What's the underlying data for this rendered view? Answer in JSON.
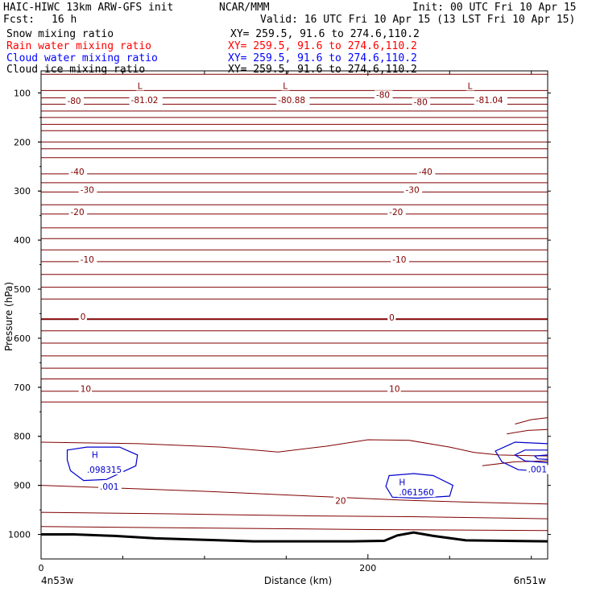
{
  "header": {
    "model": "HAIC-HIWC 13km ARW-GFS init",
    "org": "NCAR/MMM",
    "init": "Init: 00 UTC Fri 10 Apr 15",
    "fcst_label": "Fcst:",
    "fcst_value": "16 h",
    "valid": "Valid: 16 UTC Fri 10 Apr 15 (13 LST Fri 10 Apr 15)",
    "fields": [
      {
        "name": "Snow mixing ratio",
        "xy": "XY= 259.5, 91.6 to 274.6,110.2",
        "color": "#000000"
      },
      {
        "name": "Rain water mixing ratio",
        "xy": "XY= 259.5, 91.6 to 274.6,110.2",
        "color": "#ff0000"
      },
      {
        "name": "Cloud water mixing ratio",
        "xy": "XY= 259.5, 91.6 to 274.6,110.2",
        "color": "#0000ff"
      },
      {
        "name": "Cloud ice mixing ratio",
        "xy": "XY= 259.5, 91.6 to 274.6,110.2",
        "color": "#000000"
      }
    ]
  },
  "chart_data": {
    "type": "cross-section contour",
    "xlabel": "Distance (km)",
    "ylabel": "Pressure (hPa)",
    "x_ticks": [
      {
        "value": 0,
        "label": "0"
      },
      {
        "value": 200,
        "label": "200"
      }
    ],
    "x_minor_ticks": [
      50,
      100,
      150,
      250,
      300
    ],
    "xlim": [
      0,
      310
    ],
    "y_ticks": [
      100,
      200,
      300,
      400,
      500,
      600,
      700,
      800,
      900,
      1000
    ],
    "ylim": [
      55,
      1050
    ],
    "endpoint_labels": {
      "left": "4n53w",
      "right": "6n51w"
    },
    "colors": {
      "temperature": "#800000",
      "cloud_water": "#0000cc",
      "terrain": "#000000"
    },
    "temperature_contour_labels": [
      {
        "text": "-80",
        "x": 16,
        "p": 121
      },
      {
        "text": "-81.02",
        "x": 55,
        "p": 119
      },
      {
        "text": "-80.88",
        "x": 145,
        "p": 119
      },
      {
        "text": "-80",
        "x": 205,
        "p": 108
      },
      {
        "text": "-80",
        "x": 228,
        "p": 123
      },
      {
        "text": "-81.04",
        "x": 266,
        "p": 119
      },
      {
        "text": "-40",
        "x": 18,
        "p": 265
      },
      {
        "text": "-40",
        "x": 231,
        "p": 265
      },
      {
        "text": "-30",
        "x": 24,
        "p": 302
      },
      {
        "text": "-30",
        "x": 223,
        "p": 302
      },
      {
        "text": "-20",
        "x": 18,
        "p": 347
      },
      {
        "text": "-20",
        "x": 213,
        "p": 347
      },
      {
        "text": "-10",
        "x": 24,
        "p": 444
      },
      {
        "text": "-10",
        "x": 215,
        "p": 444
      },
      {
        "text": "0",
        "x": 24,
        "p": 561
      },
      {
        "text": "0",
        "x": 213,
        "p": 562
      },
      {
        "text": "10",
        "x": 24,
        "p": 708
      },
      {
        "text": "10",
        "x": 213,
        "p": 708
      },
      {
        "text": "20",
        "x": 180,
        "p": 936
      }
    ],
    "temperature_extrema": [
      {
        "text": "L",
        "x": 59,
        "p": 90
      },
      {
        "text": "L",
        "x": 148,
        "p": 90
      },
      {
        "text": "L",
        "x": 261,
        "p": 90
      }
    ],
    "cloud_water_labels": [
      {
        "text": "H",
        "x": 31,
        "p": 842
      },
      {
        "text": ".098315",
        "x": 28,
        "p": 873
      },
      {
        "text": ".001",
        "x": 36,
        "p": 907
      },
      {
        "text": "H",
        "x": 219,
        "p": 898
      },
      {
        "text": ".061560",
        "x": 219,
        "p": 919
      },
      {
        "text": ".001",
        "x": 298,
        "p": 872
      }
    ]
  }
}
